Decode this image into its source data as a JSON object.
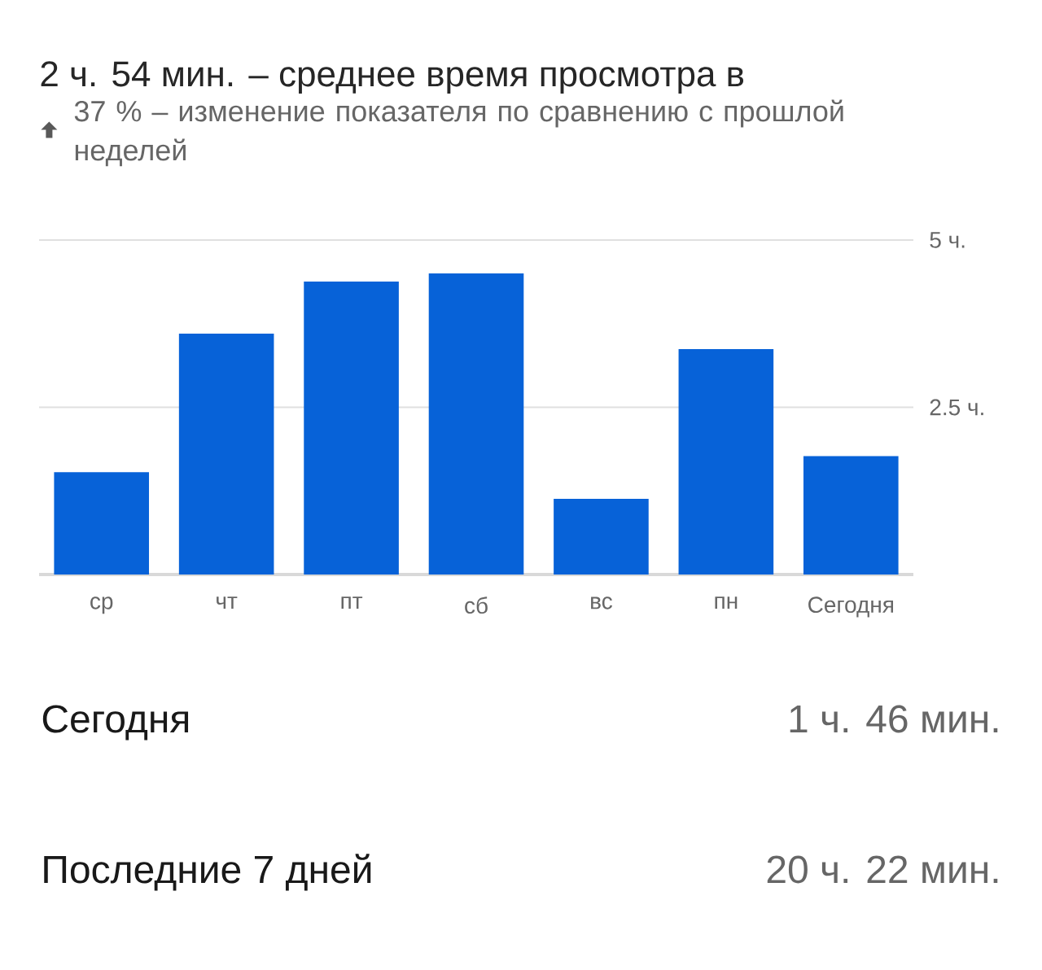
{
  "chart_data": {
    "type": "bar",
    "title": "2 ч. 54 мин. – среднее время просмотра в",
    "subtitle": "37 % – изменение показателя по сравнению с прошлой неделей",
    "categories": [
      "ср",
      "чт",
      "пт",
      "сб",
      "вс",
      "пн",
      "Сегодня"
    ],
    "values": [
      1.53,
      3.6,
      4.38,
      4.5,
      1.13,
      3.37,
      1.77
    ],
    "color": "#0762d8",
    "ylim": [
      0,
      5
    ],
    "yticks": [
      {
        "value": 2.5,
        "label": "2.5 ч."
      },
      {
        "value": 5,
        "label": "5 ч."
      }
    ],
    "grid": "y",
    "annotations": [
      "Сегодня",
      "1 ч. 46 мин.",
      "Последние 7 дней",
      "20 ч. 22 мин."
    ]
  }
}
